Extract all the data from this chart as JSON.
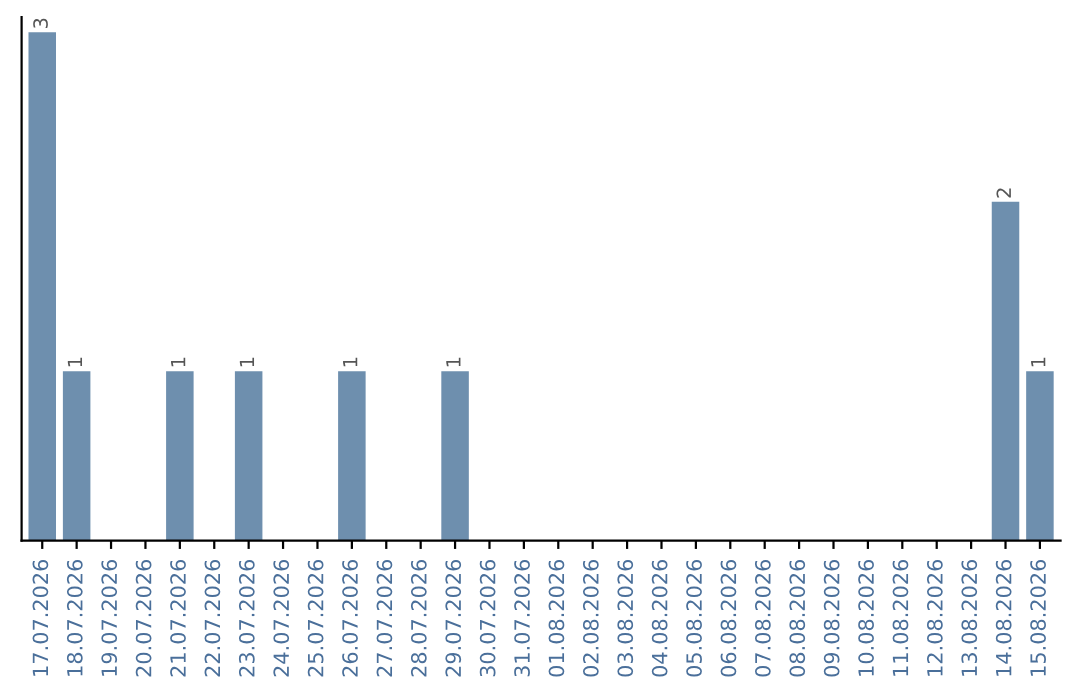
{
  "chart_data": {
    "type": "bar",
    "categories": [
      "17.07.2026",
      "18.07.2026",
      "19.07.2026",
      "20.07.2026",
      "21.07.2026",
      "22.07.2026",
      "23.07.2026",
      "24.07.2026",
      "25.07.2026",
      "26.07.2026",
      "27.07.2026",
      "28.07.2026",
      "29.07.2026",
      "30.07.2026",
      "31.07.2026",
      "01.08.2026",
      "02.08.2026",
      "03.08.2026",
      "04.08.2026",
      "05.08.2026",
      "06.08.2026",
      "07.08.2026",
      "08.08.2026",
      "09.08.2026",
      "10.08.2026",
      "11.08.2026",
      "12.08.2026",
      "13.08.2026",
      "14.08.2026",
      "15.08.2026"
    ],
    "values": [
      3,
      1,
      0,
      0,
      1,
      0,
      1,
      0,
      0,
      1,
      0,
      0,
      1,
      0,
      0,
      0,
      0,
      0,
      0,
      0,
      0,
      0,
      0,
      0,
      0,
      0,
      0,
      0,
      2,
      1
    ],
    "value_labels": [
      "3",
      "1",
      null,
      null,
      "1",
      null,
      "1",
      null,
      null,
      "1",
      null,
      null,
      "1",
      null,
      null,
      null,
      null,
      null,
      null,
      null,
      null,
      null,
      null,
      null,
      null,
      null,
      null,
      null,
      "2",
      "1"
    ],
    "color": "#6e8fae",
    "tick_labels": "x",
    "grid": false,
    "legend": false
  }
}
